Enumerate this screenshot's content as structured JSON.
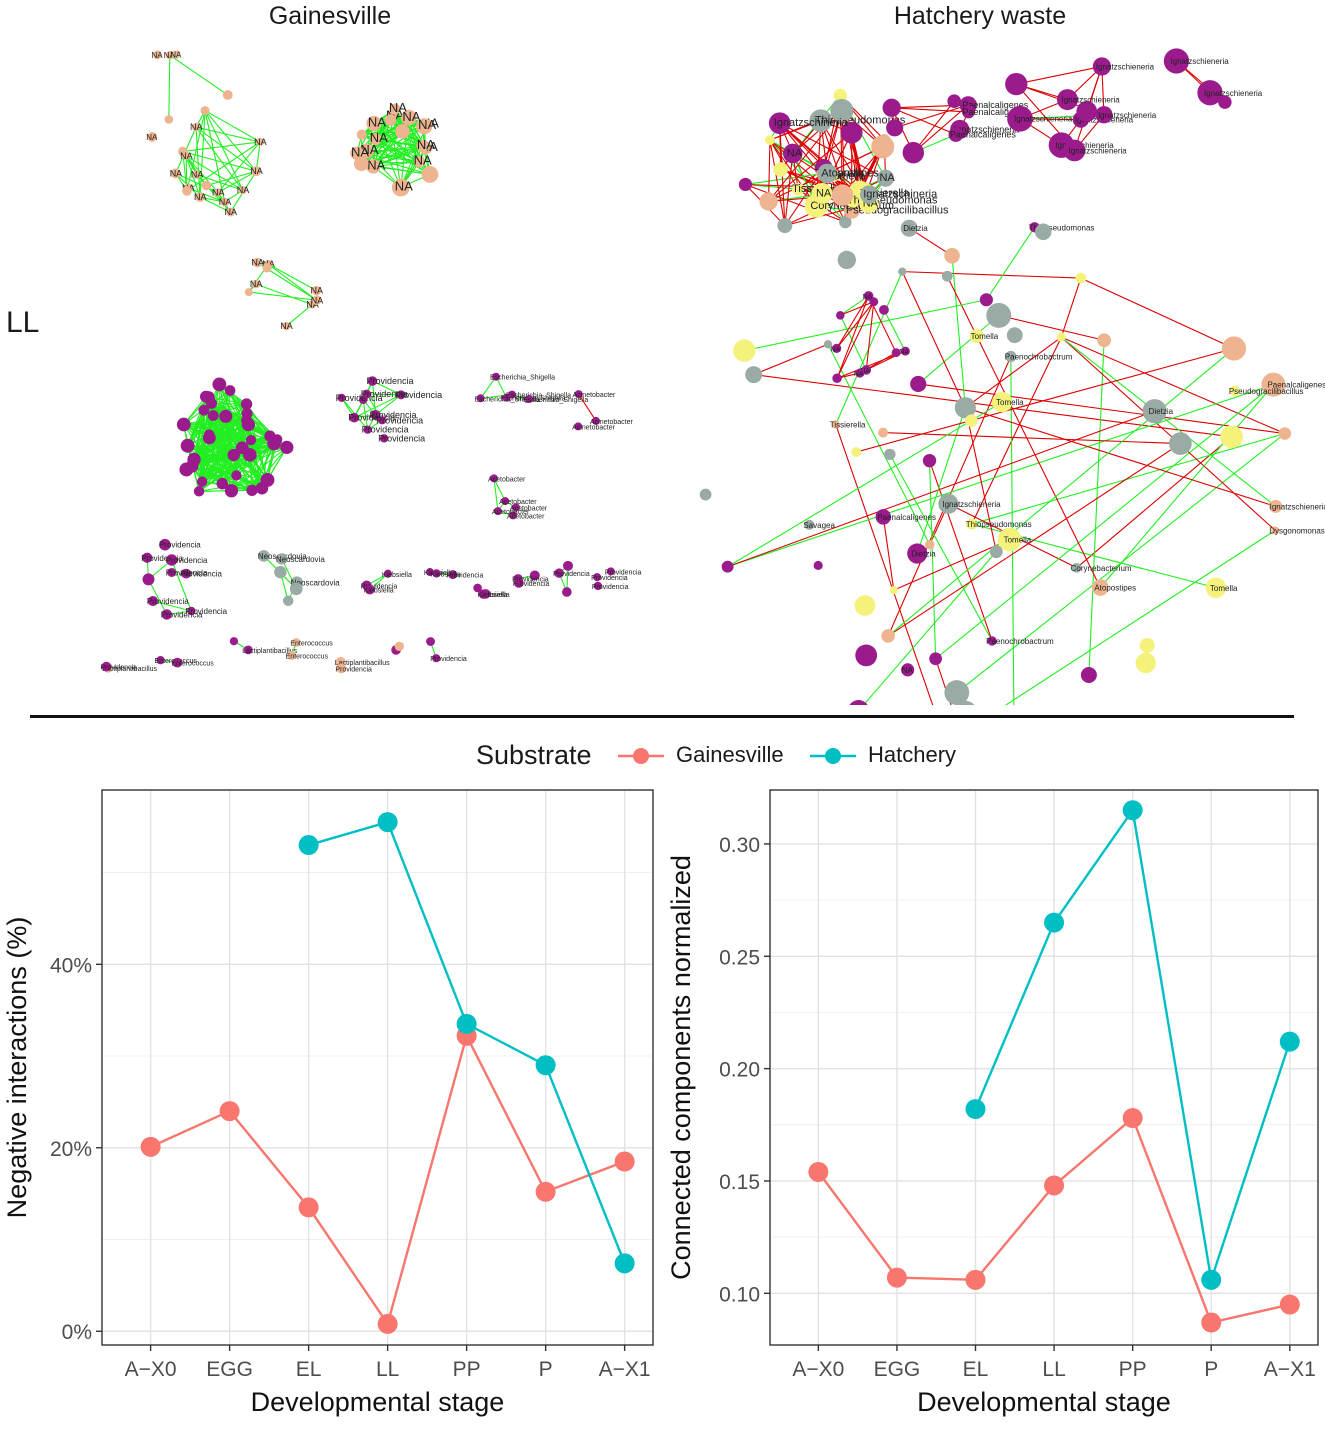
{
  "network_panels": {
    "left_title": "Gainesville",
    "right_title": "Hatchery waste",
    "row_label": "LL",
    "edge_colors": {
      "positive": "#22ee22",
      "negative": "#dd0000"
    },
    "node_colors": {
      "NA": "#eeb48f",
      "genus": "#9b1a8c",
      "grey": "#9aaaa4",
      "yellow": "#f4f27a"
    },
    "gainesville_labels": [
      "NA",
      "Providencia",
      "Escherichia_Shigella",
      "Acinetobacter",
      "Paenochrobactrum",
      "Acetobacter",
      "Neoscardovia",
      "Klebsiella",
      "Enterococcus",
      "Levilactobacillus",
      "Lactiplantibacillus"
    ],
    "hatchery_labels": [
      "NA",
      "Ignatzschieneria",
      "Paenalcaligenes",
      "Dietzia",
      "Pseudogracilibacillus",
      "Savagea",
      "Corynebacterium",
      "Dysgonomonas",
      "Tissierella",
      "Pseudogracilibacillus",
      "Peptoniphilus",
      "Thiopseudomonas",
      "Paenochrobactrum",
      "Atopostipes",
      "Tomella",
      "Ignatzschineria",
      "Paenalcligenes"
    ]
  },
  "chart_data": [
    {
      "type": "line",
      "xlabel": "Developmental stage",
      "ylabel": "Negative interactions (%)",
      "categories": [
        "A−X0",
        "EGG",
        "EL",
        "LL",
        "PP",
        "P",
        "A−X1"
      ],
      "yticks": [
        "0%",
        "20%",
        "40%"
      ],
      "ylim": [
        -1.5,
        59
      ],
      "tick_values": [
        0,
        20,
        40
      ],
      "series": [
        {
          "name": "Gainesville",
          "color": "#f8766d",
          "values": [
            20.1,
            24.0,
            13.5,
            0.8,
            32.2,
            15.2,
            18.5
          ]
        },
        {
          "name": "Hatchery",
          "color": "#00bfc4",
          "values": [
            null,
            null,
            53.0,
            55.5,
            33.5,
            29.0,
            7.4
          ]
        }
      ]
    },
    {
      "type": "line",
      "xlabel": "Developmental stage",
      "ylabel": "Connected components normalized",
      "categories": [
        "A−X0",
        "EGG",
        "EL",
        "LL",
        "PP",
        "P",
        "A−X1"
      ],
      "yticks": [
        "0.10",
        "0.15",
        "0.20",
        "0.25",
        "0.30"
      ],
      "ylim": [
        0.077,
        0.324
      ],
      "tick_values": [
        0.1,
        0.15,
        0.2,
        0.25,
        0.3
      ],
      "series": [
        {
          "name": "Gainesville",
          "color": "#f8766d",
          "values": [
            0.154,
            0.107,
            0.106,
            0.148,
            0.178,
            0.087,
            0.095
          ]
        },
        {
          "name": "Hatchery",
          "color": "#00bfc4",
          "values": [
            null,
            null,
            0.182,
            0.265,
            0.315,
            0.106,
            0.212
          ]
        }
      ]
    }
  ],
  "legend": {
    "title": "Substrate",
    "entries": [
      {
        "label": "Gainesville",
        "color": "#f8766d"
      },
      {
        "label": "Hatchery",
        "color": "#00bfc4"
      }
    ]
  }
}
